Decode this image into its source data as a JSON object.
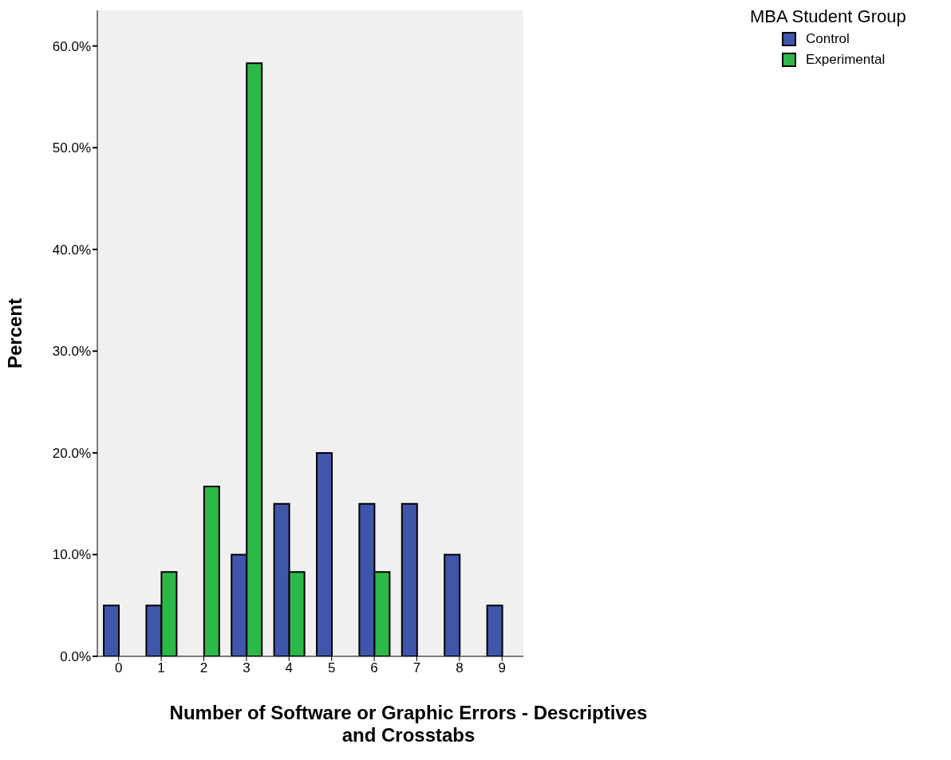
{
  "chart_data": {
    "type": "bar",
    "xlabel": "Number of Software or Graphic Errors - Descriptives and Crosstabs",
    "ylabel": "Percent",
    "legend_title": "MBA Student Group",
    "categories": [
      "0",
      "1",
      "2",
      "3",
      "4",
      "5",
      "6",
      "7",
      "8",
      "9"
    ],
    "series": [
      {
        "name": "Control",
        "color": "#3f56aa",
        "values": [
          5,
          5,
          0,
          10,
          15,
          20,
          15,
          15,
          10,
          5
        ]
      },
      {
        "name": "Experimental",
        "color": "#2db84a",
        "values": [
          0,
          8.3,
          16.7,
          58.3,
          8.3,
          0,
          8.3,
          0,
          0,
          0
        ]
      }
    ],
    "ylim": [
      0,
      63.5
    ],
    "yticks": [
      {
        "value": 0,
        "label": "0.0%"
      },
      {
        "value": 10,
        "label": "10.0%"
      },
      {
        "value": 20,
        "label": "20.0%"
      },
      {
        "value": 30,
        "label": "30.0%"
      },
      {
        "value": 40,
        "label": "40.0%"
      },
      {
        "value": 50,
        "label": "50.0%"
      },
      {
        "value": 60,
        "label": "60.0%"
      }
    ],
    "grid": false,
    "legend": "top right"
  }
}
